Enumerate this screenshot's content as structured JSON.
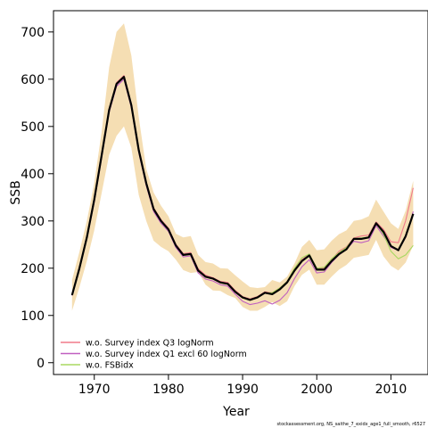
{
  "chart_data": {
    "type": "line",
    "xlabel": "Year",
    "ylabel": "SSB",
    "xlim": [
      1964.5,
      2015
    ],
    "ylim": [
      -25,
      745
    ],
    "xticks": [
      1970,
      1980,
      1990,
      2000,
      2010
    ],
    "yticks": [
      0,
      100,
      200,
      300,
      400,
      500,
      600,
      700
    ],
    "grid": false,
    "legend": "bottom-left",
    "x": [
      1967,
      1968,
      1969,
      1970,
      1971,
      1972,
      1973,
      1974,
      1975,
      1976,
      1977,
      1978,
      1979,
      1980,
      1981,
      1982,
      1983,
      1984,
      1985,
      1986,
      1987,
      1988,
      1989,
      1990,
      1991,
      1992,
      1993,
      1994,
      1995,
      1996,
      1997,
      1998,
      1999,
      2000,
      2001,
      2002,
      2003,
      2004,
      2005,
      2006,
      2007,
      2008,
      2009,
      2010,
      2011,
      2012,
      2013
    ],
    "band": {
      "color": "#f5deb3",
      "upper": [
        175,
        235,
        300,
        380,
        490,
        625,
        700,
        718,
        650,
        520,
        410,
        360,
        332,
        310,
        273,
        265,
        268,
        228,
        213,
        210,
        200,
        199,
        185,
        172,
        160,
        158,
        160,
        175,
        170,
        182,
        210,
        245,
        260,
        238,
        240,
        258,
        272,
        280,
        300,
        303,
        310,
        345,
        320,
        295,
        283,
        322,
        385
      ],
      "lower": [
        110,
        160,
        215,
        280,
        360,
        440,
        480,
        500,
        455,
        355,
        300,
        258,
        245,
        236,
        218,
        196,
        190,
        192,
        165,
        153,
        152,
        143,
        137,
        118,
        110,
        110,
        118,
        128,
        120,
        130,
        162,
        186,
        197,
        165,
        165,
        182,
        197,
        207,
        222,
        225,
        228,
        260,
        225,
        205,
        195,
        212,
        248
      ]
    },
    "series": [
      {
        "name": "",
        "color": "#000000",
        "width": 2.2,
        "values": [
          143,
          200,
          265,
          345,
          440,
          535,
          590,
          605,
          545,
          450,
          380,
          325,
          300,
          282,
          248,
          228,
          230,
          195,
          182,
          178,
          170,
          167,
          150,
          138,
          133,
          138,
          148,
          145,
          155,
          170,
          195,
          215,
          227,
          197,
          197,
          215,
          230,
          240,
          262,
          262,
          265,
          295,
          277,
          247,
          238,
          268,
          315
        ]
      },
      {
        "name": "w.o. Survey index Q3 logNorm",
        "color": "#f07a8a",
        "width": 1.1,
        "values": [
          144,
          201,
          266,
          347,
          442,
          537,
          593,
          608,
          548,
          453,
          383,
          328,
          303,
          285,
          251,
          231,
          233,
          199,
          185,
          180,
          172,
          170,
          153,
          140,
          135,
          140,
          150,
          148,
          158,
          172,
          198,
          218,
          230,
          200,
          200,
          218,
          236,
          245,
          264,
          268,
          270,
          298,
          282,
          256,
          254,
          301,
          370
        ]
      },
      {
        "name": "w.o. Survey index Q1 excl 60 logNorm",
        "color": "#c060c0",
        "width": 1.1,
        "values": [
          142,
          198,
          262,
          340,
          435,
          530,
          585,
          600,
          540,
          445,
          375,
          320,
          295,
          278,
          244,
          224,
          226,
          190,
          177,
          173,
          165,
          162,
          145,
          130,
          123,
          126,
          131,
          124,
          132,
          148,
          178,
          203,
          218,
          190,
          192,
          212,
          228,
          240,
          257,
          254,
          258,
          290,
          268,
          244,
          238,
          265,
          320
        ]
      },
      {
        "name": "w.o. FSBidx",
        "color": "#a8d860",
        "width": 1.1,
        "values": [
          143,
          200,
          265,
          345,
          440,
          535,
          590,
          605,
          545,
          450,
          380,
          325,
          300,
          282,
          248,
          228,
          230,
          195,
          182,
          178,
          170,
          167,
          150,
          138,
          134,
          138,
          148,
          148,
          158,
          172,
          200,
          222,
          230,
          200,
          202,
          220,
          233,
          244,
          263,
          264,
          266,
          295,
          272,
          236,
          220,
          228,
          248
        ]
      }
    ]
  },
  "footer": "stockassessment.org, NS_saithe_7_exidx_age1_full_smooth, r6527"
}
